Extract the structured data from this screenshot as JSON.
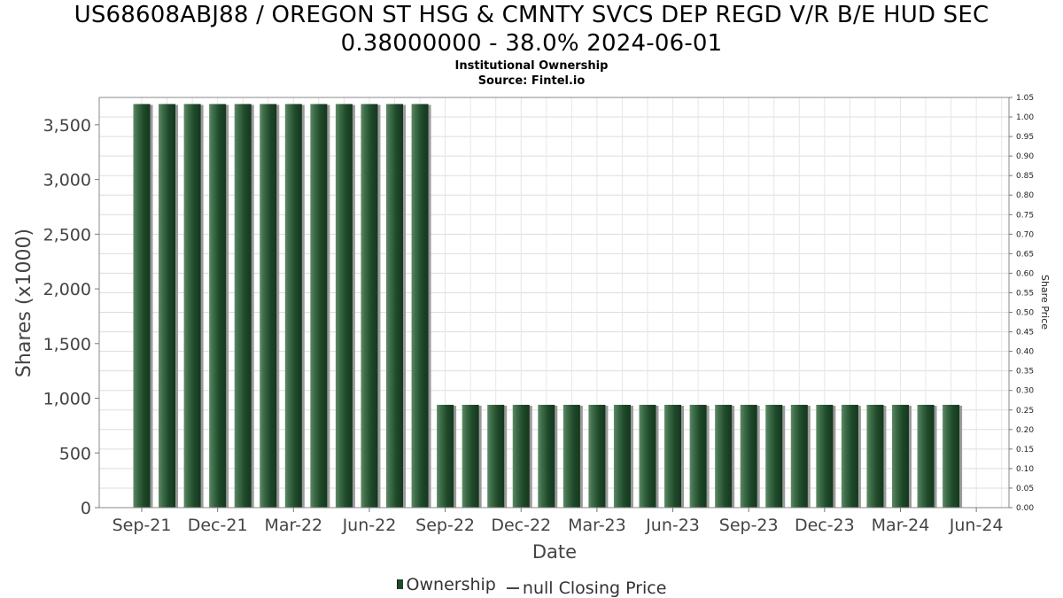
{
  "title_line1": "US68608ABJ88 / OREGON ST HSG & CMNTY SVCS DEP REGD V/R B/E HUD SEC",
  "title_line2": "0.38000000 - 38.0% 2024-06-01",
  "subtitle": "Institutional Ownership",
  "source": "Source: Fintel.io",
  "legend": {
    "ownership": "Ownership",
    "closing_price": "null Closing Price"
  },
  "colors": {
    "bar": "#1e4a2a",
    "bar_light": "#3d6b47",
    "grid": "#dddddd"
  },
  "chart_data": {
    "type": "bar",
    "title": "US68608ABJ88 / OREGON ST HSG & CMNTY SVCS DEP REGD V/R B/E HUD SEC 0.38000000 - 38.0% 2024-06-01",
    "xlabel": "Date",
    "ylabel": "Shares (x1000)",
    "y2label": "Share Price",
    "ylim": [
      0,
      3750
    ],
    "y2lim": [
      0,
      1.05
    ],
    "yticks": [
      0,
      500,
      1000,
      1500,
      2000,
      2500,
      3000,
      3500
    ],
    "ytick_labels": [
      "0",
      "500",
      "1,000",
      "1,500",
      "2,000",
      "2,500",
      "3,000",
      "3,500"
    ],
    "y2ticks": [
      0.0,
      0.05,
      0.1,
      0.15,
      0.2,
      0.25,
      0.3,
      0.35,
      0.4,
      0.45,
      0.5,
      0.55,
      0.6,
      0.65,
      0.7,
      0.75,
      0.8,
      0.85,
      0.9,
      0.95,
      1.0,
      1.05
    ],
    "y2tick_labels": [
      "0.00",
      "0.05",
      "0.10",
      "0.15",
      "0.20",
      "0.25",
      "0.30",
      "0.35",
      "0.40",
      "0.45",
      "0.50",
      "0.55",
      "0.60",
      "0.65",
      "0.70",
      "0.75",
      "0.80",
      "0.85",
      "0.90",
      "0.95",
      "1.00",
      "1.05"
    ],
    "xticks": [
      "Sep-21",
      "Dec-21",
      "Mar-22",
      "Jun-22",
      "Sep-22",
      "Dec-22",
      "Mar-23",
      "Jun-23",
      "Sep-23",
      "Dec-23",
      "Mar-24",
      "Jun-24"
    ],
    "x_range_months": [
      0,
      34.5
    ],
    "bar_months": [
      0,
      1,
      2,
      3,
      4,
      5,
      6,
      7,
      8,
      9,
      10,
      11,
      12,
      13,
      14,
      15,
      16,
      17,
      18,
      19,
      20,
      21,
      22,
      23,
      24,
      25,
      26,
      27,
      28,
      29,
      30,
      31,
      32
    ],
    "series": [
      {
        "name": "Ownership",
        "values": [
          3690,
          3690,
          3690,
          3690,
          3690,
          3690,
          3690,
          3690,
          3690,
          3690,
          3690,
          3690,
          940,
          940,
          940,
          940,
          940,
          940,
          940,
          940,
          940,
          940,
          940,
          940,
          940,
          940,
          940,
          940,
          940,
          940,
          940,
          940,
          940
        ]
      }
    ],
    "grid": true,
    "legend_position": "bottom"
  }
}
